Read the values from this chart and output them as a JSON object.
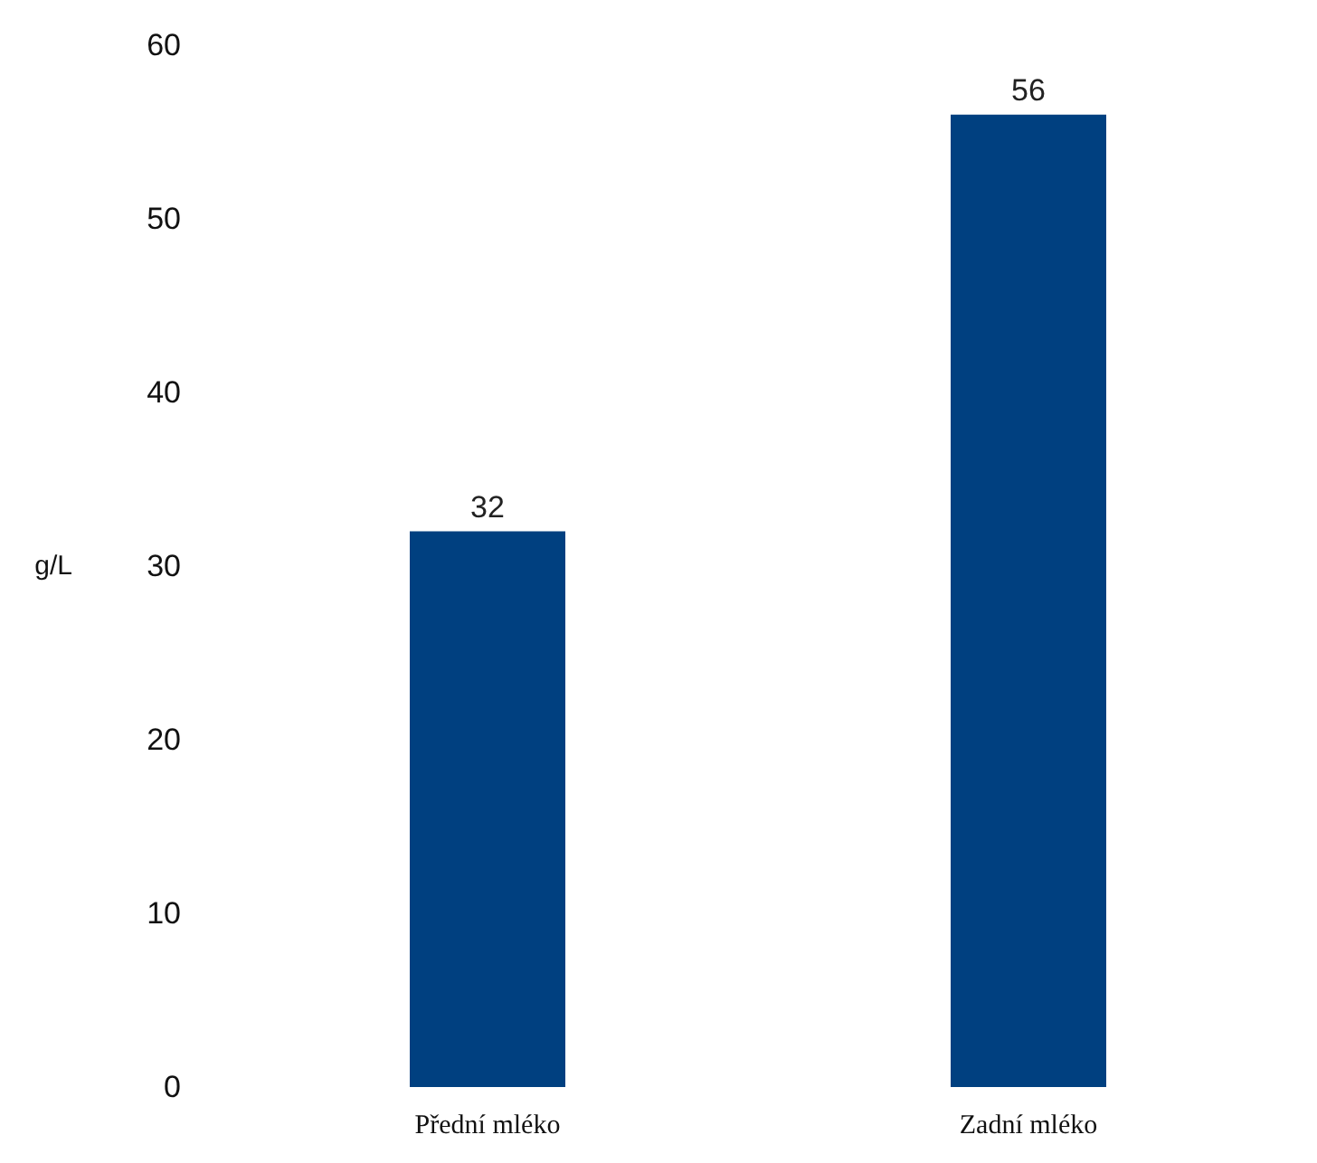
{
  "chart_data": {
    "type": "bar",
    "ylabel": "g/L",
    "categories": [
      "Přední mléko",
      "Zadní mléko"
    ],
    "values": [
      32,
      56
    ],
    "color": "#004080",
    "ylim": [
      0,
      60
    ],
    "yticks": [
      0,
      10,
      20,
      30,
      40,
      50,
      60
    ],
    "grid": false,
    "data_labels": true
  }
}
